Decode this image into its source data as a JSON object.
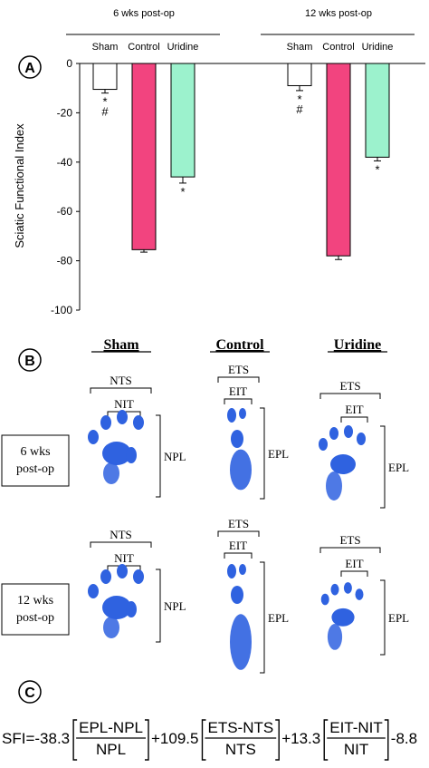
{
  "panel_labels": {
    "a": "A",
    "b": "B",
    "c": "C"
  },
  "chart_data": {
    "type": "bar",
    "groups": [
      "6 wks post-op",
      "12 wks post-op"
    ],
    "categories": [
      "Sham",
      "Control",
      "Uridine"
    ],
    "series": [
      {
        "name": "6 wks post-op",
        "values": [
          -10.5,
          -75.5,
          -46
        ],
        "errors": [
          1.5,
          1,
          2.5
        ]
      },
      {
        "name": "12 wks post-op",
        "values": [
          -9,
          -78,
          -38
        ],
        "errors": [
          2,
          1.5,
          1.5
        ]
      }
    ],
    "annotations": [
      [
        "* #",
        "",
        "*"
      ],
      [
        "* #",
        "",
        "*"
      ]
    ],
    "colors": [
      "#ffffff",
      "#f2447f",
      "#9cf2cd"
    ],
    "ylabel": "Sciatic Functional Index",
    "ylim": [
      -100,
      0
    ],
    "yticks": [
      0,
      -20,
      -40,
      -60,
      -80,
      -100
    ],
    "grid": false
  },
  "footprints": {
    "col_headers": [
      "Sham",
      "Control",
      "Uridine"
    ],
    "row_labels": [
      [
        "6 wks",
        "post-op"
      ],
      [
        "12 wks",
        "post-op"
      ]
    ],
    "rows": [
      [
        {
          "ts": "NTS",
          "it": "NIT",
          "pl": "NPL"
        },
        {
          "ts": "ETS",
          "it": "EIT",
          "pl": "EPL"
        },
        {
          "ts": "ETS",
          "it": "EIT",
          "pl": "EPL"
        }
      ],
      [
        {
          "ts": "NTS",
          "it": "NIT",
          "pl": "NPL"
        },
        {
          "ts": "ETS",
          "it": "EIT",
          "pl": "EPL"
        },
        {
          "ts": "ETS",
          "it": "EIT",
          "pl": "EPL"
        }
      ]
    ],
    "print_color": "#2f62e0"
  },
  "formula": {
    "prefix": "SFI=-38.3",
    "term1": {
      "num": "EPL-NPL",
      "den": "NPL"
    },
    "coef2": "+109.5",
    "term2": {
      "num": "ETS-NTS",
      "den": "NTS"
    },
    "coef3": "+13.3",
    "term3": {
      "num": "EIT-NIT",
      "den": "NIT"
    },
    "suffix": "-8.8"
  }
}
